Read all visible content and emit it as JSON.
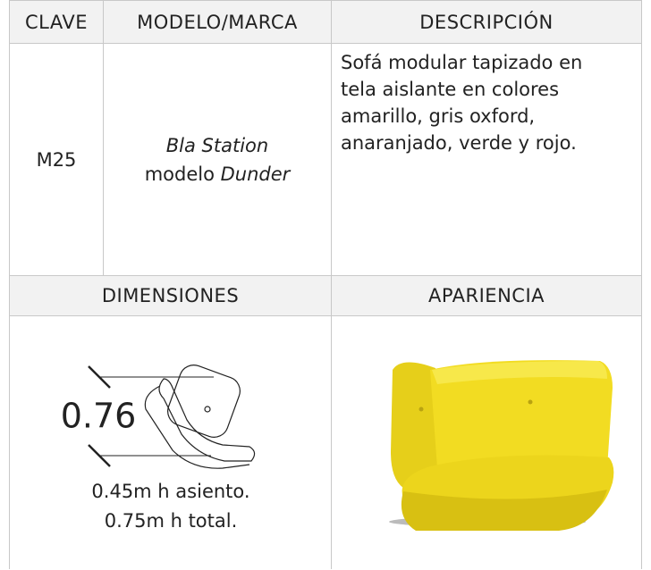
{
  "header": {
    "clave": "CLAVE",
    "modelo": "MODELO/MARCA",
    "descripcion": "DESCRIPCIÓN"
  },
  "row": {
    "clave": "M25",
    "brand": "Bla Station",
    "model_prefix": "modelo",
    "model_name": "Dunder",
    "description_lines": [
      "Sofá modular tapizado en",
      "tela aislante en colores",
      "amarillo, gris oxford,",
      "anaranjado, verde y rojo."
    ]
  },
  "section": {
    "dimensiones": "DIMENSIONES",
    "apariencia": "APARIENCIA"
  },
  "dimensions": {
    "width": "0.76",
    "seat": "0.45m h asiento.",
    "total": "0.75m h total."
  }
}
